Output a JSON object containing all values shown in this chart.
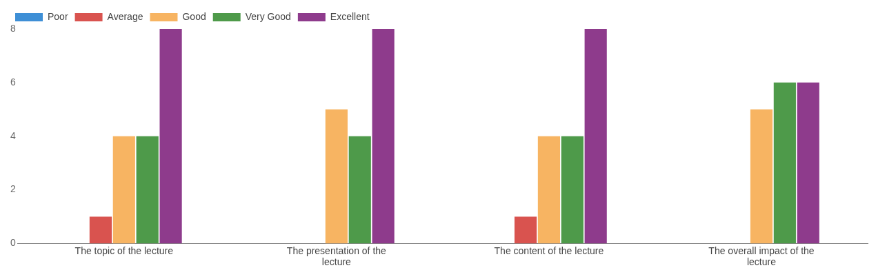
{
  "chart_data": {
    "type": "bar",
    "categories": [
      "The topic of the lecture",
      "The presentation of the lecture",
      "The content of the lecture",
      "The overall impact of the lecture"
    ],
    "series": [
      {
        "name": "Poor",
        "color": "#3e8fd6",
        "values": [
          0,
          0,
          0,
          0
        ]
      },
      {
        "name": "Average",
        "color": "#d9534f",
        "values": [
          1,
          0,
          1,
          0
        ]
      },
      {
        "name": "Good",
        "color": "#f7b462",
        "values": [
          4,
          5,
          4,
          5
        ]
      },
      {
        "name": "Very Good",
        "color": "#4e9a4a",
        "values": [
          4,
          4,
          4,
          6
        ]
      },
      {
        "name": "Excellent",
        "color": "#8e3b8c",
        "values": [
          8,
          8,
          8,
          6
        ]
      }
    ],
    "ylim": [
      0,
      8
    ],
    "yticks": [
      0,
      2,
      4,
      6,
      8
    ],
    "grid": false,
    "legend": "top left"
  }
}
